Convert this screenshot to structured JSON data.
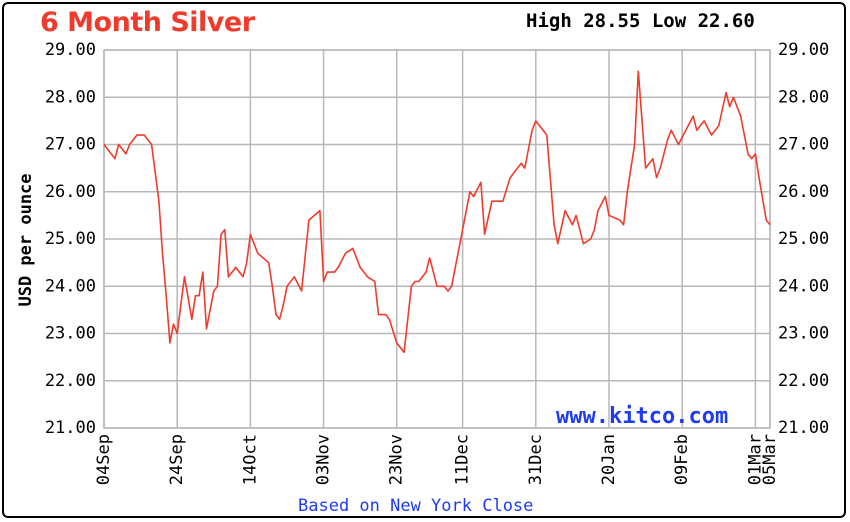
{
  "chart_data": {
    "type": "line",
    "title": "6 Month Silver",
    "high_low": "High 28.55 Low 22.60",
    "ylabel": "USD per ounce",
    "footer": "Based on New York Close",
    "watermark": "www.kitco.com",
    "ylim": [
      21,
      29
    ],
    "yticks": [
      "29.00",
      "28.00",
      "27.00",
      "26.00",
      "25.00",
      "24.00",
      "23.00",
      "22.00",
      "21.00"
    ],
    "xlim": [
      "2020-09-04",
      "2021-03-05"
    ],
    "xticks": [
      {
        "label": "04Sep",
        "date": "2020-09-04"
      },
      {
        "label": "24Sep",
        "date": "2020-09-24"
      },
      {
        "label": "14Oct",
        "date": "2020-10-14"
      },
      {
        "label": "03Nov",
        "date": "2020-11-03"
      },
      {
        "label": "23Nov",
        "date": "2020-11-23"
      },
      {
        "label": "11Dec",
        "date": "2020-12-11"
      },
      {
        "label": "31Dec",
        "date": "2020-12-31"
      },
      {
        "label": "20Jan",
        "date": "2021-01-20"
      },
      {
        "label": "09Feb",
        "date": "2021-02-09"
      },
      {
        "label": "01Mar",
        "date": "2021-03-01"
      },
      {
        "label": "05Mar",
        "date": "2021-03-05"
      }
    ],
    "grid": true,
    "line_color": "#ef3b2c",
    "series": [
      {
        "x": [
          "2020-09-04",
          "2020-09-07",
          "2020-09-08",
          "2020-09-10",
          "2020-09-11",
          "2020-09-13",
          "2020-09-15",
          "2020-09-17",
          "2020-09-19",
          "2020-09-20",
          "2020-09-21",
          "2020-09-22",
          "2020-09-23",
          "2020-09-24",
          "2020-09-25",
          "2020-09-26",
          "2020-09-28",
          "2020-09-29",
          "2020-09-30",
          "2020-10-01",
          "2020-10-02",
          "2020-10-04",
          "2020-10-05",
          "2020-10-06",
          "2020-10-07",
          "2020-10-08",
          "2020-10-09",
          "2020-10-10",
          "2020-10-12",
          "2020-10-13",
          "2020-10-14",
          "2020-10-16",
          "2020-10-19",
          "2020-10-20",
          "2020-10-21",
          "2020-10-22",
          "2020-10-23",
          "2020-10-24",
          "2020-10-26",
          "2020-10-28",
          "2020-10-30",
          "2020-11-02",
          "2020-11-03",
          "2020-11-04",
          "2020-11-05",
          "2020-11-06",
          "2020-11-07",
          "2020-11-09",
          "2020-11-11",
          "2020-11-13",
          "2020-11-15",
          "2020-11-17",
          "2020-11-18",
          "2020-11-20",
          "2020-11-21",
          "2020-11-23",
          "2020-11-25",
          "2020-11-27",
          "2020-11-28",
          "2020-11-29",
          "2020-11-30",
          "2020-12-01",
          "2020-12-02",
          "2020-12-04",
          "2020-12-06",
          "2020-12-07",
          "2020-12-08",
          "2020-12-10",
          "2020-12-13",
          "2020-12-14",
          "2020-12-16",
          "2020-12-17",
          "2020-12-19",
          "2020-12-20",
          "2020-12-22",
          "2020-12-24",
          "2020-12-27",
          "2020-12-28",
          "2020-12-30",
          "2020-12-31",
          "2021-01-03",
          "2021-01-05",
          "2021-01-06",
          "2021-01-08",
          "2021-01-10",
          "2021-01-11",
          "2021-01-13",
          "2021-01-15",
          "2021-01-16",
          "2021-01-17",
          "2021-01-19",
          "2021-01-20",
          "2021-01-23",
          "2021-01-24",
          "2021-01-25",
          "2021-01-27",
          "2021-01-28",
          "2021-01-30",
          "2021-02-01",
          "2021-02-02",
          "2021-02-03",
          "2021-02-04",
          "2021-02-05",
          "2021-02-06",
          "2021-02-08",
          "2021-02-10",
          "2021-02-12",
          "2021-02-13",
          "2021-02-15",
          "2021-02-17",
          "2021-02-19",
          "2021-02-21",
          "2021-02-22",
          "2021-02-23",
          "2021-02-25",
          "2021-02-27",
          "2021-02-28",
          "2021-03-01",
          "2021-03-02",
          "2021-03-04",
          "2021-03-05"
        ],
        "values": [
          27.0,
          26.7,
          27.0,
          26.8,
          27.0,
          27.2,
          27.2,
          27.0,
          25.8,
          24.7,
          23.8,
          22.8,
          23.2,
          23.0,
          23.6,
          24.2,
          23.3,
          23.8,
          23.8,
          24.3,
          23.1,
          23.9,
          24.0,
          25.1,
          25.2,
          24.2,
          24.3,
          24.4,
          24.2,
          24.5,
          25.1,
          24.7,
          24.5,
          24.0,
          23.4,
          23.3,
          23.6,
          24.0,
          24.2,
          23.9,
          25.4,
          25.6,
          24.1,
          24.3,
          24.3,
          24.3,
          24.4,
          24.7,
          24.8,
          24.4,
          24.2,
          24.1,
          23.4,
          23.4,
          23.3,
          22.8,
          22.6,
          24.0,
          24.1,
          24.1,
          24.2,
          24.3,
          24.6,
          24.0,
          24.0,
          23.9,
          24.0,
          24.8,
          26.0,
          25.9,
          26.2,
          25.1,
          25.8,
          25.8,
          25.8,
          26.3,
          26.6,
          26.5,
          27.3,
          27.5,
          27.2,
          25.3,
          24.9,
          25.6,
          25.3,
          25.5,
          24.9,
          25.0,
          25.2,
          25.6,
          25.9,
          25.5,
          25.4,
          25.3,
          26.0,
          27.0,
          28.55,
          26.5,
          26.7,
          26.3,
          26.5,
          26.8,
          27.1,
          27.3,
          27.0,
          27.3,
          27.6,
          27.3,
          27.5,
          27.2,
          27.4,
          28.1,
          27.8,
          28.0,
          27.6,
          26.8,
          26.7,
          26.8,
          26.3,
          25.4,
          25.3
        ]
      }
    ]
  }
}
